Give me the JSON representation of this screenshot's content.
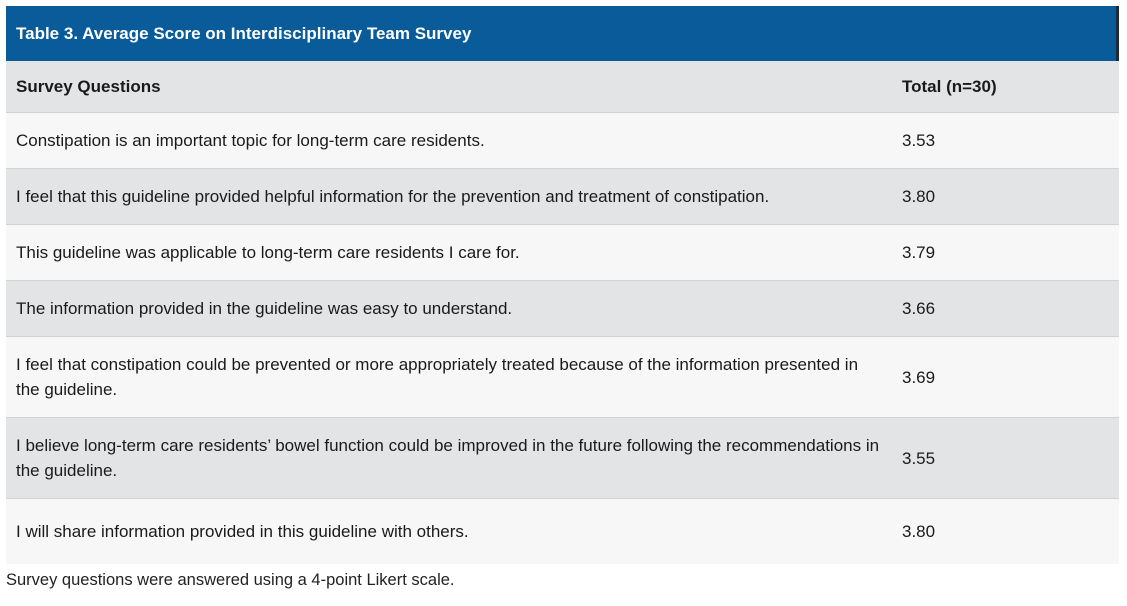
{
  "table": {
    "title": "Table 3. Average Score on Interdisciplinary Team Survey",
    "headers": [
      "Survey Questions",
      "Total (n=30)"
    ],
    "rows": [
      {
        "question": "Constipation is an important topic for long-term care residents.",
        "total": "3.53"
      },
      {
        "question": "I feel that this guideline provided helpful information for the prevention and treatment of constipation.",
        "total": "3.80"
      },
      {
        "question": "This guideline was applicable to long-term care residents I care for.",
        "total": "3.79"
      },
      {
        "question": "The information provided in the guideline was easy to understand.",
        "total": "3.66"
      },
      {
        "question": "I feel that constipation could be prevented or more appropriately treated because of the information presented in the guideline.",
        "total": "3.69"
      },
      {
        "question": "I believe long-term care residents’ bowel function could be improved in the future following the recommendations in the guideline.",
        "total": "3.55"
      },
      {
        "question": "I will share information provided in this guideline with others.",
        "total": "3.80"
      }
    ],
    "footnote": "Survey questions were answered using a 4-point Likert scale."
  },
  "colors": {
    "title_bar": "#0a5b99",
    "row_shade": "#e3e4e6",
    "row_light": "#f7f7f8"
  }
}
